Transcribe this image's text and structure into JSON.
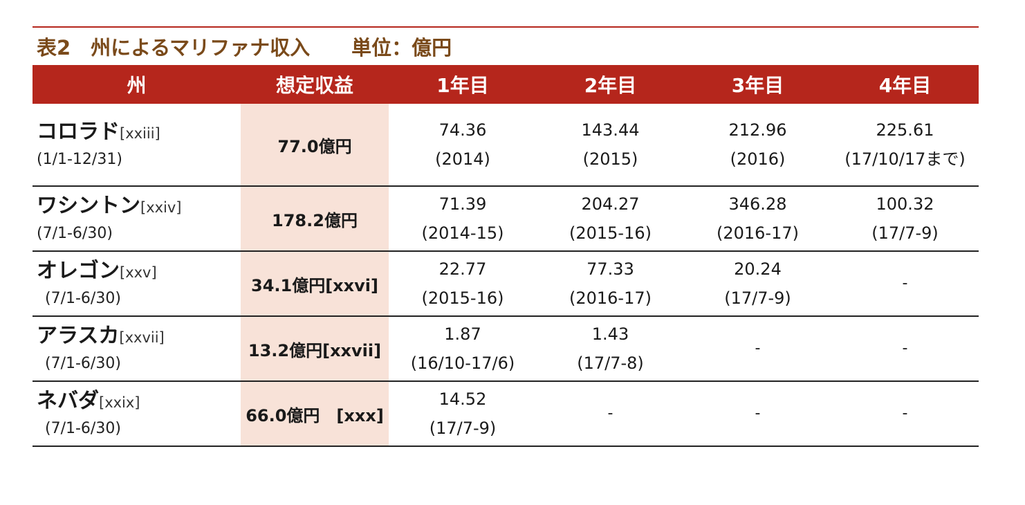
{
  "caption": {
    "title": "表2　州によるマリファナ収入",
    "unit": "単位：億円"
  },
  "headers": [
    "州",
    "想定収益",
    "1年目",
    "2年目",
    "3年目",
    "4年目"
  ],
  "rows": [
    {
      "state": "コロラド",
      "ref": "[xxiii]",
      "period": "(1/1-12/31)",
      "estimate": "77.0億円",
      "years": [
        {
          "value": "74.36",
          "period": "(2014)"
        },
        {
          "value": "143.44",
          "period": "(2015)"
        },
        {
          "value": "212.96",
          "period": "(2016)"
        },
        {
          "value": "225.61",
          "period": "(17/10/17まで)"
        }
      ]
    },
    {
      "state": "ワシントン",
      "ref": "[xxiv]",
      "period": "(7/1-6/30)",
      "estimate": "178.2億円",
      "years": [
        {
          "value": "71.39",
          "period": "(2014-15)"
        },
        {
          "value": "204.27",
          "period": "(2015-16)"
        },
        {
          "value": "346.28",
          "period": "(2016-17)"
        },
        {
          "value": "100.32",
          "period": "(17/7-9)"
        }
      ]
    },
    {
      "state": "オレゴン",
      "ref": "[xxv]",
      "period": "(7/1-6/30)",
      "estimate": "34.1億円[xxvi]",
      "years": [
        {
          "value": "22.77",
          "period": "(2015-16)"
        },
        {
          "value": "77.33",
          "period": "(2016-17)"
        },
        {
          "value": "20.24",
          "period": "(17/7-9)"
        },
        {
          "value": "-",
          "period": ""
        }
      ]
    },
    {
      "state": "アラスカ",
      "ref": "[xxvii]",
      "period": "(7/1-6/30)",
      "estimate": "13.2億円[xxvii]",
      "years": [
        {
          "value": "1.87",
          "period": "(16/10-17/6)"
        },
        {
          "value": "1.43",
          "period": "(17/7-8)"
        },
        {
          "value": "-",
          "period": ""
        },
        {
          "value": "-",
          "period": ""
        }
      ]
    },
    {
      "state": "ネバダ",
      "ref": "[xxix]",
      "period": "(7/1-6/30)",
      "estimate": "66.0億円　[xxx]",
      "years": [
        {
          "value": "14.52",
          "period": "(17/7-9)"
        },
        {
          "value": "-",
          "period": ""
        },
        {
          "value": "-",
          "period": ""
        },
        {
          "value": "-",
          "period": ""
        }
      ]
    }
  ]
}
